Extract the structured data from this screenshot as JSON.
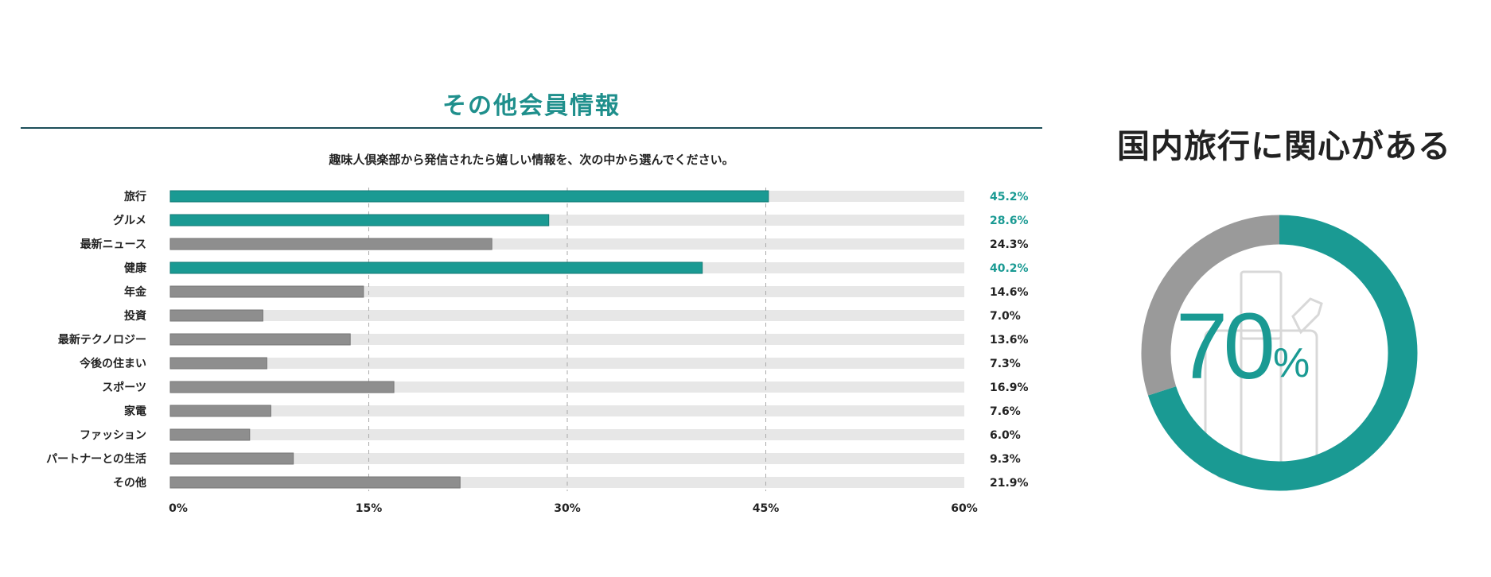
{
  "main_title": "その他会員情報",
  "question": "趣味人倶楽部から発信されたら嬉しい情報を、次の中から選んでください。",
  "colors": {
    "highlight": "#1a9a93",
    "normal": "#8e8e8e",
    "track": "#e7e7e7",
    "rule": "#1d4f5a",
    "title": "#1f8f8c"
  },
  "chart_data": [
    {
      "type": "bar",
      "orientation": "horizontal",
      "categories": [
        "旅行",
        "グルメ",
        "最新ニュース",
        "健康",
        "年金",
        "投資",
        "最新テクノロジー",
        "今後の住まい",
        "スポーツ",
        "家電",
        "ファッション",
        "パートナーとの生活",
        "その他"
      ],
      "values": [
        45.2,
        28.6,
        24.3,
        40.2,
        14.6,
        7.0,
        13.6,
        7.3,
        16.9,
        7.6,
        6.0,
        9.3,
        21.9
      ],
      "value_labels": [
        "45.2%",
        "28.6%",
        "24.3%",
        "40.2%",
        "14.6%",
        "7.0%",
        "13.6%",
        "7.3%",
        "16.9%",
        "7.6%",
        "6.0%",
        "9.3%",
        "21.9%"
      ],
      "highlighted": [
        "旅行",
        "グルメ",
        "健康"
      ],
      "xlim": [
        0,
        60
      ],
      "xticks": [
        0,
        15,
        30,
        45,
        60
      ],
      "xtick_labels": [
        "0%",
        "15%",
        "30%",
        "45%",
        "60%"
      ],
      "grid": "vertical dashed",
      "title": "その他会員情報"
    },
    {
      "type": "pie",
      "donut": true,
      "title": "国内旅行に関心がある",
      "values": [
        70,
        30
      ],
      "center_label": "70",
      "center_unit": "%",
      "colors": [
        "#1a9a93",
        "#9a9a9a"
      ]
    }
  ],
  "side": {
    "title": "国内旅行に関心がある",
    "value": "70",
    "unit": "%",
    "icon": "suitcase-icon"
  }
}
